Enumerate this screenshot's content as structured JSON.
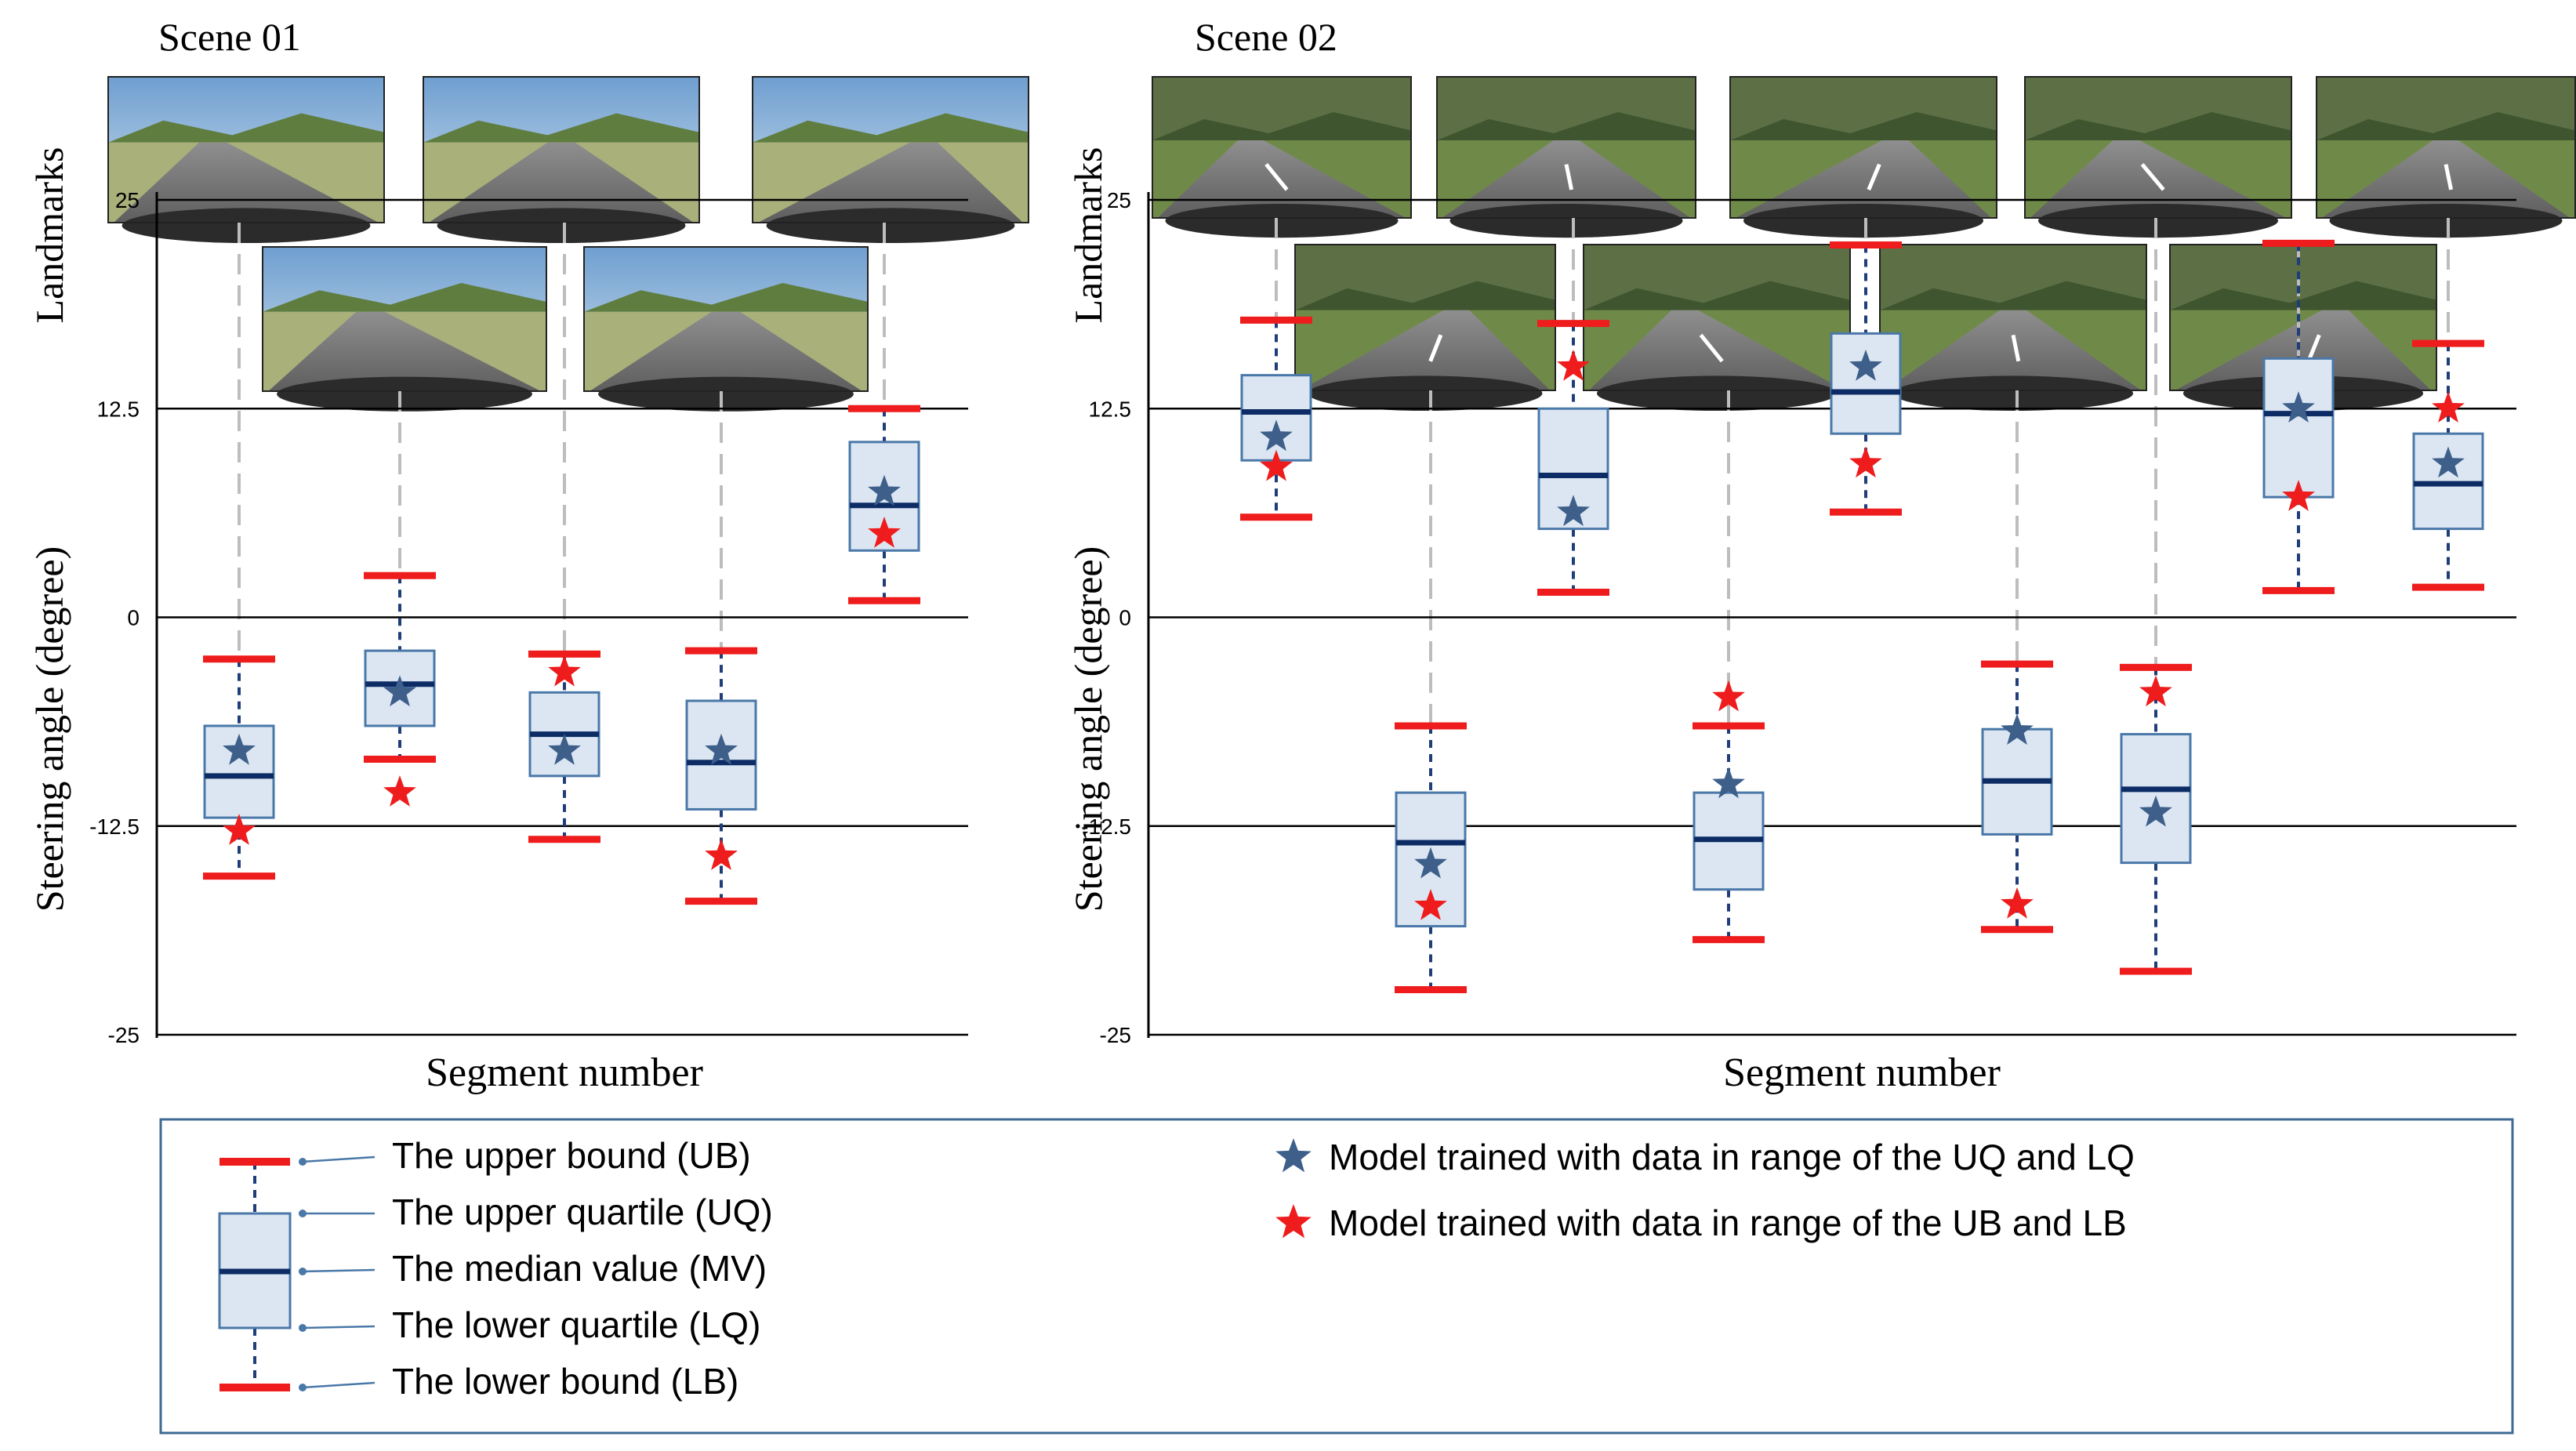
{
  "legend": {
    "ub": "The upper bound (UB)",
    "uq": "The upper quartile (UQ)",
    "mv": "The median value (MV)",
    "lq": "The lower quartile (LQ)",
    "lb": "The lower bound (LB)",
    "blue_star": "Model trained with data in range of the UQ and LQ",
    "red_star": "Model trained with data in range of the UB and LB"
  },
  "colors": {
    "box_fill": "#dce6f2",
    "box_edge": "#4a78a8",
    "median": "#0d2c66",
    "whisker": "#1f3d78",
    "bound": "#ee1c1c",
    "blue_star": "#3d5f8a",
    "red_star": "#ee1c1c",
    "grid": "#000000",
    "guide": "#bdbdbd",
    "legend_border": "#3d6a94"
  },
  "chart_data": [
    {
      "type": "box",
      "title": "Scene 01",
      "landmarks_label": "Landmarks",
      "xlabel": "Segment number",
      "ylabel": "Steering angle (degree)",
      "ylim": [
        -25,
        25
      ],
      "yticks": [
        25,
        12.5,
        0,
        -12.5,
        -25
      ],
      "ytick_labels": [
        "25",
        "12.5",
        "0",
        "-12.5",
        "-25"
      ],
      "boxes": [
        {
          "ub": -2.5,
          "uq": -6.5,
          "median": -9.5,
          "lq": -12,
          "lb": -15.5,
          "blue_star": -8,
          "red_star": -12.8
        },
        {
          "ub": 2.5,
          "uq": -2,
          "median": -4,
          "lq": -6.5,
          "lb": -8.5,
          "blue_star": -4.5,
          "red_star": -10.5
        },
        {
          "ub": -2.2,
          "uq": -4.5,
          "median": -7,
          "lq": -9.5,
          "lb": -13.3,
          "blue_star": -8,
          "red_star": -3.3
        },
        {
          "ub": -2,
          "uq": -5,
          "median": -8.7,
          "lq": -11.5,
          "lb": -17,
          "blue_star": -8,
          "red_star": -14.3
        },
        {
          "ub": 12.5,
          "uq": 10.5,
          "median": 6.7,
          "lq": 4,
          "lb": 1,
          "blue_star": 7.5,
          "red_star": 5
        }
      ]
    },
    {
      "type": "box",
      "title": "Scene 02",
      "landmarks_label": "Landmarks",
      "xlabel": "Segment number",
      "ylabel": "Steering angle (degree)",
      "ylim": [
        -25,
        25
      ],
      "yticks": [
        25,
        12.5,
        0,
        -12.5,
        -25
      ],
      "ytick_labels": [
        "25",
        "12.5",
        "0",
        "-12.5",
        "-25"
      ],
      "boxes": [
        {
          "ub": 17.8,
          "uq": 14.5,
          "median": 12.3,
          "lq": 9.4,
          "lb": 6,
          "blue_star": 10.8,
          "red_star": 9
        },
        {
          "ub": -6.5,
          "uq": -10.5,
          "median": -13.5,
          "lq": -18.5,
          "lb": -22.3,
          "blue_star": -14.8,
          "red_star": -17.3
        },
        {
          "ub": 17.6,
          "uq": 12.5,
          "median": 8.5,
          "lq": 5.3,
          "lb": 1.5,
          "blue_star": 6.3,
          "red_star": 15
        },
        {
          "ub": -6.5,
          "uq": -10.5,
          "median": -13.3,
          "lq": -16.3,
          "lb": -19.3,
          "blue_star": -10,
          "red_star": -4.8
        },
        {
          "ub": 22.3,
          "uq": 17,
          "median": 13.5,
          "lq": 11,
          "lb": 6.3,
          "blue_star": 15,
          "red_star": 9.2
        },
        {
          "ub": -2.8,
          "uq": -6.7,
          "median": -9.8,
          "lq": -13,
          "lb": -18.7,
          "blue_star": -6.8,
          "red_star": -17.2
        },
        {
          "ub": -3,
          "uq": -7,
          "median": -10.3,
          "lq": -14.7,
          "lb": -21.2,
          "blue_star": -11.7,
          "red_star": -4.5
        },
        {
          "ub": 22.4,
          "uq": 15.5,
          "median": 12.2,
          "lq": 7.2,
          "lb": 1.6,
          "blue_star": 12.5,
          "red_star": 7.2
        },
        {
          "ub": 16.4,
          "uq": 11,
          "median": 8,
          "lq": 5.3,
          "lb": 1.8,
          "blue_star": 9.2,
          "red_star": 12.5
        }
      ]
    }
  ]
}
